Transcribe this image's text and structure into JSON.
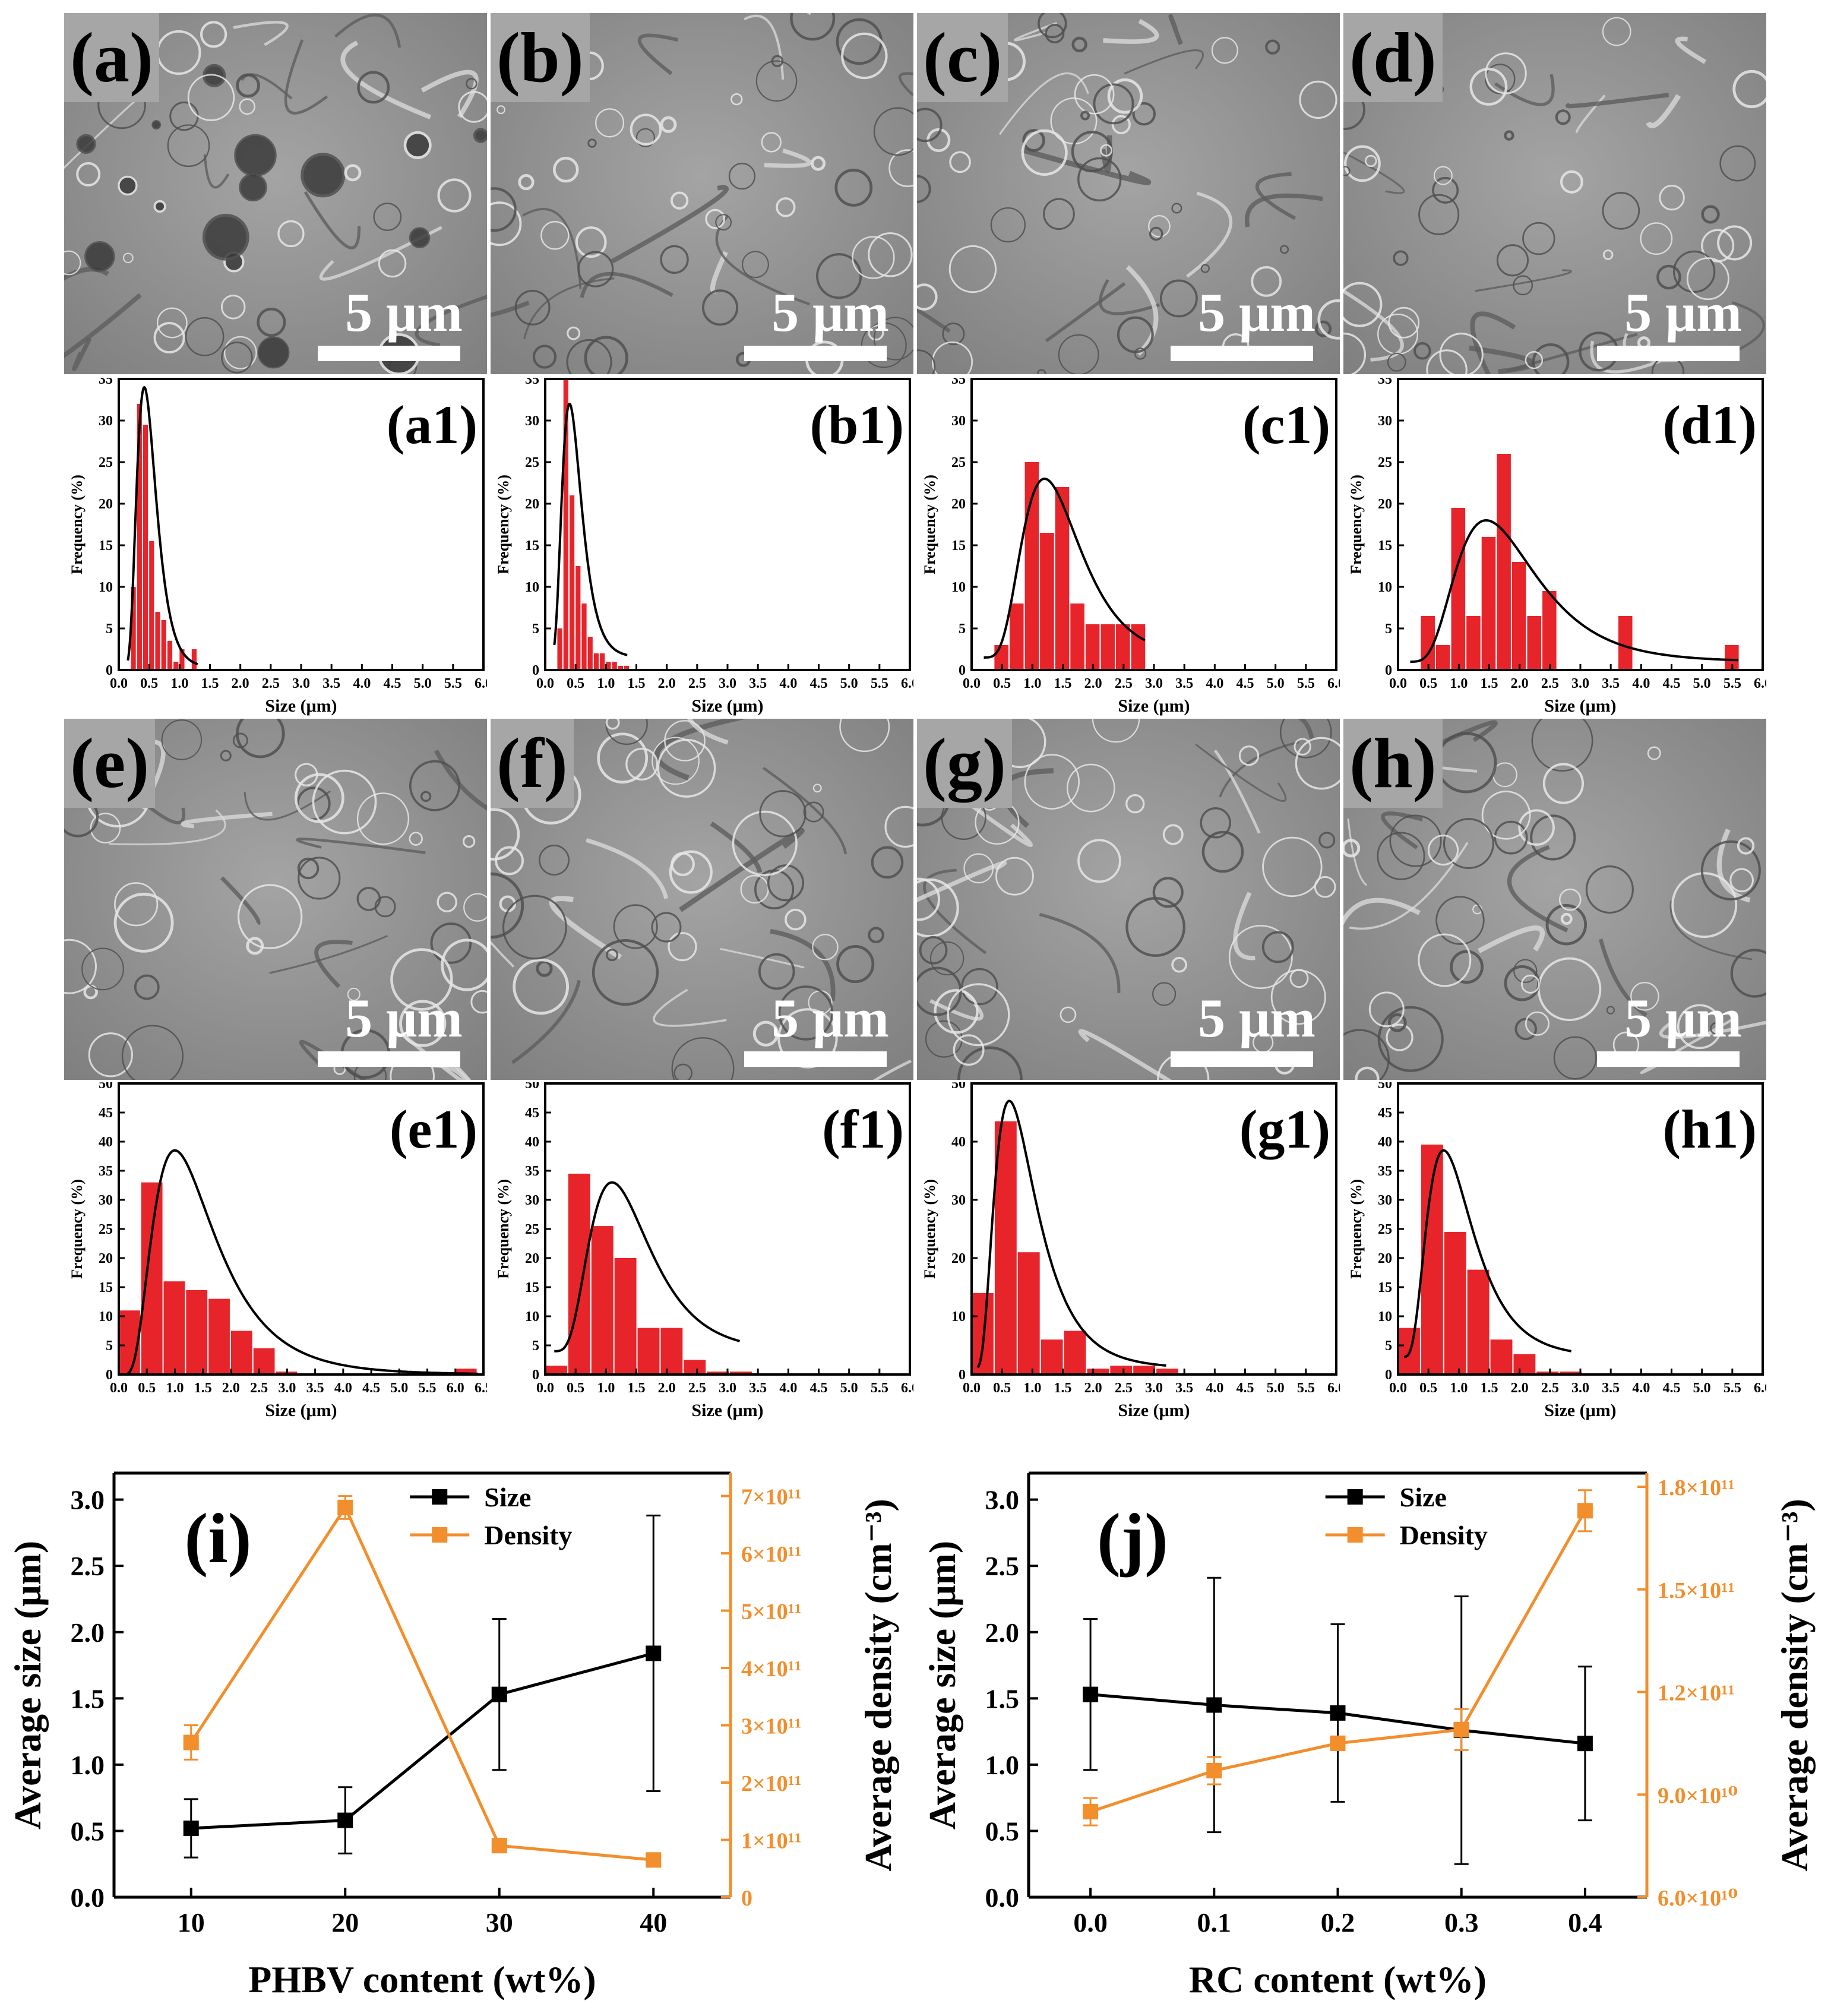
{
  "colors": {
    "bar": "#e8242b",
    "curve": "#000000",
    "size_line": "#000000",
    "density_line": "#f28e2c",
    "axis": "#000000"
  },
  "sem_panels": [
    {
      "label": "(a)",
      "scale": "5 μm"
    },
    {
      "label": "(b)",
      "scale": "5 μm"
    },
    {
      "label": "(c)",
      "scale": "5 μm"
    },
    {
      "label": "(d)",
      "scale": "5 μm"
    },
    {
      "label": "(e)",
      "scale": "5 μm"
    },
    {
      "label": "(f)",
      "scale": "5 μm"
    },
    {
      "label": "(g)",
      "scale": "5 μm"
    },
    {
      "label": "(h)",
      "scale": "5 μm"
    }
  ],
  "chart_data": [
    {
      "id": "a1",
      "type": "bar",
      "title": "(a1)",
      "xlabel": "Size (μm)",
      "ylabel": "Frequency (%)",
      "xlim": [
        0,
        6
      ],
      "ylim": [
        0,
        35
      ],
      "xticks": [
        0,
        0.5,
        1,
        1.5,
        2,
        2.5,
        3,
        3.5,
        4,
        4.5,
        5,
        5.5,
        6
      ],
      "yticks": [
        0,
        5,
        10,
        15,
        20,
        25,
        30,
        35
      ],
      "bin_width": 0.1,
      "bins": [
        0.25,
        0.35,
        0.45,
        0.55,
        0.65,
        0.75,
        0.85,
        0.95,
        1.05,
        1.25
      ],
      "values": [
        10,
        32,
        29.5,
        15.5,
        7,
        6,
        3.5,
        1,
        2.5,
        2.5
      ],
      "fit": {
        "type": "lognormal",
        "peak_x": 0.42,
        "peak_y": 34,
        "sigma": 0.38,
        "baseline": 0.3,
        "x_range": [
          0.15,
          1.3
        ]
      }
    },
    {
      "id": "b1",
      "type": "bar",
      "title": "(b1)",
      "xlabel": "Size (μm)",
      "ylabel": "Frequency (%)",
      "xlim": [
        0,
        6
      ],
      "ylim": [
        0,
        35
      ],
      "xticks": [
        0,
        0.5,
        1,
        1.5,
        2,
        2.5,
        3,
        3.5,
        4,
        4.5,
        5,
        5.5,
        6
      ],
      "yticks": [
        0,
        5,
        10,
        15,
        20,
        25,
        30,
        35
      ],
      "bin_width": 0.1,
      "bins": [
        0.25,
        0.35,
        0.45,
        0.55,
        0.65,
        0.75,
        0.85,
        0.95,
        1.05,
        1.15,
        1.25,
        1.35
      ],
      "values": [
        5,
        35,
        21,
        12.5,
        8,
        4,
        2,
        2,
        1,
        1,
        0.5,
        0.5
      ],
      "fit": {
        "type": "lognormal",
        "peak_x": 0.4,
        "peak_y": 32,
        "sigma": 0.4,
        "baseline": 1.5,
        "x_range": [
          0.15,
          1.35
        ]
      }
    },
    {
      "id": "c1",
      "type": "bar",
      "title": "(c1)",
      "xlabel": "Size (μm)",
      "ylabel": "Frequency (%)",
      "xlim": [
        0,
        6
      ],
      "ylim": [
        0,
        35
      ],
      "xticks": [
        0,
        0.5,
        1,
        1.5,
        2,
        2.5,
        3,
        3.5,
        4,
        4.5,
        5,
        5.5,
        6
      ],
      "yticks": [
        0,
        5,
        10,
        15,
        20,
        25,
        30,
        35
      ],
      "bin_width": 0.25,
      "bins": [
        0.5,
        0.75,
        1.0,
        1.25,
        1.5,
        1.75,
        2.0,
        2.25,
        2.5,
        2.75
      ],
      "values": [
        3,
        8,
        25,
        16.5,
        22,
        8,
        5.5,
        5.5,
        5.5,
        5.5
      ],
      "fit": {
        "type": "lognormal",
        "peak_x": 1.2,
        "peak_y": 23,
        "sigma": 0.4,
        "baseline": 1.5,
        "x_range": [
          0.2,
          2.85
        ]
      }
    },
    {
      "id": "d1",
      "type": "bar",
      "title": "(d1)",
      "xlabel": "Size (μm)",
      "ylabel": "Frequency (%)",
      "xlim": [
        0,
        6
      ],
      "ylim": [
        0,
        35
      ],
      "xticks": [
        0,
        0.5,
        1,
        1.5,
        2,
        2.5,
        3,
        3.5,
        4,
        4.5,
        5,
        5.5,
        6
      ],
      "yticks": [
        0,
        5,
        10,
        15,
        20,
        25,
        30,
        35
      ],
      "bin_width": 0.25,
      "bins": [
        0.5,
        0.75,
        1.0,
        1.25,
        1.5,
        1.75,
        2.0,
        2.25,
        2.5,
        3.75,
        5.5
      ],
      "values": [
        6.5,
        3,
        19.5,
        6.5,
        16,
        26,
        13,
        6.5,
        9.5,
        6.5,
        3
      ],
      "fit": {
        "type": "lognormal",
        "peak_x": 1.45,
        "peak_y": 18,
        "sigma": 0.45,
        "baseline": 1,
        "x_range": [
          0.2,
          5.6
        ]
      }
    },
    {
      "id": "e1",
      "type": "bar",
      "title": "(e1)",
      "xlabel": "Size (μm)",
      "ylabel": "Frequency (%)",
      "xlim": [
        0,
        6.5
      ],
      "ylim": [
        0,
        50
      ],
      "xticks": [
        0,
        0.5,
        1,
        1.5,
        2,
        2.5,
        3,
        3.5,
        4,
        4.5,
        5,
        5.5,
        6,
        6.5
      ],
      "yticks": [
        0,
        5,
        10,
        15,
        20,
        25,
        30,
        35,
        40,
        45,
        50
      ],
      "bin_width": 0.4,
      "bins": [
        0.2,
        0.6,
        1.0,
        1.4,
        1.8,
        2.2,
        2.6,
        3.0,
        6.2
      ],
      "values": [
        11,
        33,
        16,
        14.5,
        13,
        7.5,
        4.5,
        0.5,
        1
      ],
      "fit": {
        "type": "lognormal",
        "peak_x": 1.0,
        "peak_y": 38.5,
        "sigma": 0.55,
        "baseline": 0,
        "x_range": [
          0.15,
          6.4
        ]
      }
    },
    {
      "id": "f1",
      "type": "bar",
      "title": "(f1)",
      "xlabel": "Size (μm)",
      "ylabel": "Frequency (%)",
      "xlim": [
        0,
        6
      ],
      "ylim": [
        0,
        50
      ],
      "xticks": [
        0,
        0.5,
        1,
        1.5,
        2,
        2.5,
        3,
        3.5,
        4,
        4.5,
        5,
        5.5,
        6
      ],
      "yticks": [
        0,
        5,
        10,
        15,
        20,
        25,
        30,
        35,
        40,
        45,
        50
      ],
      "bin_width": 0.38,
      "bins": [
        0.19,
        0.57,
        0.95,
        1.33,
        1.71,
        2.09,
        2.47,
        2.85,
        3.23
      ],
      "values": [
        1.5,
        34.5,
        25.5,
        20,
        8,
        8,
        2.5,
        0.5,
        0.5
      ],
      "fit": {
        "type": "lognormal",
        "peak_x": 1.1,
        "peak_y": 33,
        "sigma": 0.45,
        "baseline": 4,
        "x_range": [
          0.15,
          3.2
        ]
      }
    },
    {
      "id": "g1",
      "type": "bar",
      "title": "(g1)",
      "xlabel": "Size (μm)",
      "ylabel": "Frequency (%)",
      "xlim": [
        0,
        6
      ],
      "ylim": [
        0,
        50
      ],
      "xticks": [
        0,
        0.5,
        1,
        1.5,
        2,
        2.5,
        3,
        3.5,
        4,
        4.5,
        5,
        5.5,
        6
      ],
      "yticks": [
        0,
        10,
        20,
        30,
        40,
        50
      ],
      "bin_width": 0.38,
      "bins": [
        0.19,
        0.57,
        0.95,
        1.33,
        1.71,
        2.09,
        2.47,
        2.85,
        3.23
      ],
      "values": [
        14,
        43.5,
        21,
        6,
        7.5,
        1,
        1.5,
        1.5,
        1
      ],
      "fit": {
        "type": "lognormal",
        "peak_x": 0.62,
        "peak_y": 47,
        "sigma": 0.55,
        "baseline": 1,
        "x_range": [
          0.1,
          3.2
        ]
      }
    },
    {
      "id": "h1",
      "type": "bar",
      "title": "(h1)",
      "xlabel": "Size (μm)",
      "ylabel": "Frequency (%)",
      "xlim": [
        0,
        6
      ],
      "ylim": [
        0,
        50
      ],
      "xticks": [
        0,
        0.5,
        1,
        1.5,
        2,
        2.5,
        3,
        3.5,
        4,
        4.5,
        5,
        5.5,
        6
      ],
      "yticks": [
        0,
        5,
        10,
        15,
        20,
        25,
        30,
        35,
        40,
        45,
        50
      ],
      "bin_width": 0.38,
      "bins": [
        0.19,
        0.57,
        0.95,
        1.33,
        1.71,
        2.09,
        2.47,
        2.85
      ],
      "values": [
        8,
        39.5,
        24.5,
        18,
        6,
        3.5,
        0.5,
        0.5
      ],
      "fit": {
        "type": "lognormal",
        "peak_x": 0.75,
        "peak_y": 38.5,
        "sigma": 0.5,
        "baseline": 3,
        "x_range": [
          0.1,
          2.85
        ]
      }
    },
    {
      "id": "i",
      "type": "line",
      "title": "(i)",
      "xlabel": "PHBV content (wt%)",
      "ylabel": "Average size (μm)",
      "ylabel_right": "Average density  (cm⁻³)",
      "xlim": [
        5,
        45
      ],
      "ylim": [
        0,
        3.2
      ],
      "ylim_right": [
        0,
        740000000000.0
      ],
      "xticks": [
        10,
        20,
        30,
        40
      ],
      "xtick_labels": [
        "10",
        "20",
        "30",
        "40"
      ],
      "yticks": [
        0,
        0.5,
        1,
        1.5,
        2,
        2.5,
        3
      ],
      "ytick_labels": [
        "0.0",
        "0.5",
        "1.0",
        "1.5",
        "2.0",
        "2.5",
        "3.0"
      ],
      "yticks_right": [
        0,
        100000000000.0,
        200000000000.0,
        300000000000.0,
        400000000000.0,
        500000000000.0,
        600000000000.0,
        700000000000.0
      ],
      "ytick_right_labels": [
        "0",
        "1×10¹¹",
        "2×10¹¹",
        "3×10¹¹",
        "4×10¹¹",
        "5×10¹¹",
        "6×10¹¹",
        "7×10¹¹"
      ],
      "series": [
        {
          "name": "Size",
          "axis": "left",
          "x": [
            10,
            20,
            30,
            40
          ],
          "values": [
            0.52,
            0.58,
            1.53,
            1.84
          ],
          "err": [
            0.22,
            0.25,
            0.57,
            1.04
          ]
        },
        {
          "name": "Density",
          "axis": "right",
          "x": [
            10,
            20,
            30,
            40
          ],
          "values": [
            270000000000.0,
            680000000000.0,
            90000000000.0,
            65000000000.0
          ],
          "err": [
            30000000000.0,
            20000000000.0,
            0,
            0
          ]
        }
      ],
      "legend": [
        "Size",
        "Density"
      ]
    },
    {
      "id": "j",
      "type": "line",
      "title": "(j)",
      "xlabel": "RC content (wt%)",
      "ylabel": "Average size (μm)",
      "ylabel_right": "Average density  (cm⁻³)",
      "xlim": [
        -0.05,
        0.45
      ],
      "ylim": [
        0,
        3.2
      ],
      "ylim_right": [
        60000000000.0,
        184000000000.0
      ],
      "xticks": [
        0,
        0.1,
        0.2,
        0.3,
        0.4
      ],
      "xtick_labels": [
        "0.0",
        "0.1",
        "0.2",
        "0.3",
        "0.4"
      ],
      "yticks": [
        0,
        0.5,
        1,
        1.5,
        2,
        2.5,
        3
      ],
      "ytick_labels": [
        "0.0",
        "0.5",
        "1.0",
        "1.5",
        "2.0",
        "2.5",
        "3.0"
      ],
      "yticks_right": [
        60000000000.0,
        90000000000.0,
        120000000000.0,
        150000000000.0,
        180000000000.0
      ],
      "ytick_right_labels": [
        "6.0×10¹⁰",
        "9.0×10¹⁰",
        "1.2×10¹¹",
        "1.5×10¹¹",
        "1.8×10¹¹"
      ],
      "series": [
        {
          "name": "Size",
          "axis": "left",
          "x": [
            0,
            0.1,
            0.2,
            0.3,
            0.4
          ],
          "values": [
            1.53,
            1.45,
            1.39,
            1.26,
            1.16
          ],
          "err": [
            0.57,
            0.96,
            0.67,
            1.01,
            0.58
          ]
        },
        {
          "name": "Density",
          "axis": "right",
          "x": [
            0,
            0.1,
            0.2,
            0.3,
            0.4
          ],
          "values": [
            85000000000.0,
            97000000000.0,
            105000000000.0,
            109000000000.0,
            173000000000.0
          ],
          "err": [
            4000000000.0,
            4000000000.0,
            2000000000.0,
            6000000000.0,
            6000000000.0
          ]
        }
      ],
      "legend": [
        "Size",
        "Density"
      ]
    }
  ]
}
